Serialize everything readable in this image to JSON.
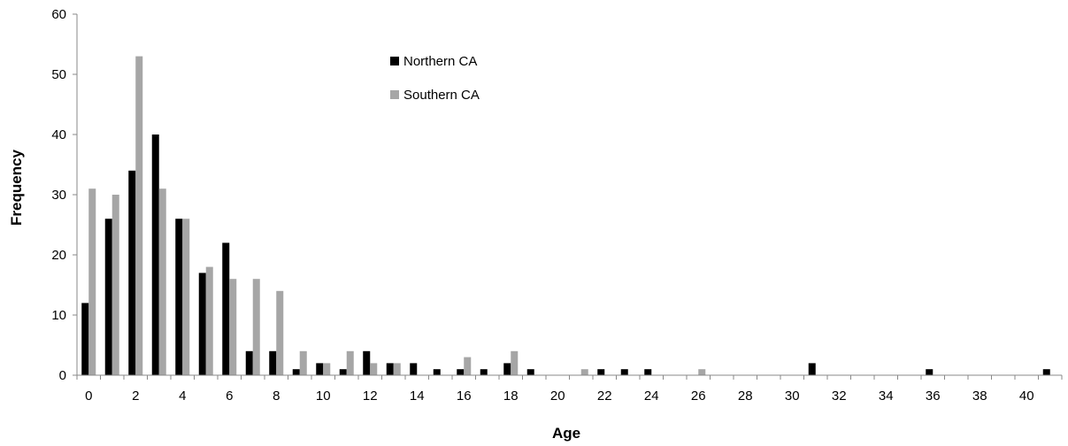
{
  "chart_data": {
    "type": "bar",
    "title": "",
    "xlabel": "Age",
    "ylabel": "Frequency",
    "ylim": [
      0,
      60
    ],
    "yticks": [
      0,
      10,
      20,
      30,
      40,
      50,
      60
    ],
    "xticks": [
      0,
      2,
      4,
      6,
      8,
      10,
      12,
      14,
      16,
      18,
      20,
      22,
      24,
      26,
      28,
      30,
      32,
      34,
      36,
      38,
      40
    ],
    "categories": [
      0,
      1,
      2,
      3,
      4,
      5,
      6,
      7,
      8,
      9,
      10,
      11,
      12,
      13,
      14,
      15,
      16,
      17,
      18,
      19,
      20,
      21,
      22,
      23,
      24,
      25,
      26,
      27,
      28,
      29,
      30,
      31,
      32,
      33,
      34,
      35,
      36,
      37,
      38,
      39,
      40,
      41
    ],
    "legend": "top-center",
    "grid": false,
    "series": [
      {
        "name": "Northern CA",
        "color": "#000000",
        "values": [
          12,
          26,
          34,
          40,
          26,
          17,
          22,
          4,
          4,
          1,
          2,
          1,
          4,
          2,
          2,
          1,
          1,
          1,
          2,
          1,
          0,
          0,
          1,
          1,
          1,
          0,
          0,
          0,
          0,
          0,
          0,
          2,
          0,
          0,
          0,
          0,
          1,
          0,
          0,
          0,
          0,
          1
        ]
      },
      {
        "name": "Southern CA",
        "color": "#a6a6a6",
        "values": [
          31,
          30,
          53,
          31,
          26,
          18,
          16,
          16,
          14,
          4,
          2,
          4,
          2,
          2,
          0,
          0,
          3,
          0,
          4,
          0,
          0,
          1,
          0,
          0,
          0,
          0,
          1,
          0,
          0,
          0,
          0,
          0,
          0,
          0,
          0,
          0,
          0,
          0,
          0,
          0,
          0,
          0
        ]
      }
    ]
  }
}
